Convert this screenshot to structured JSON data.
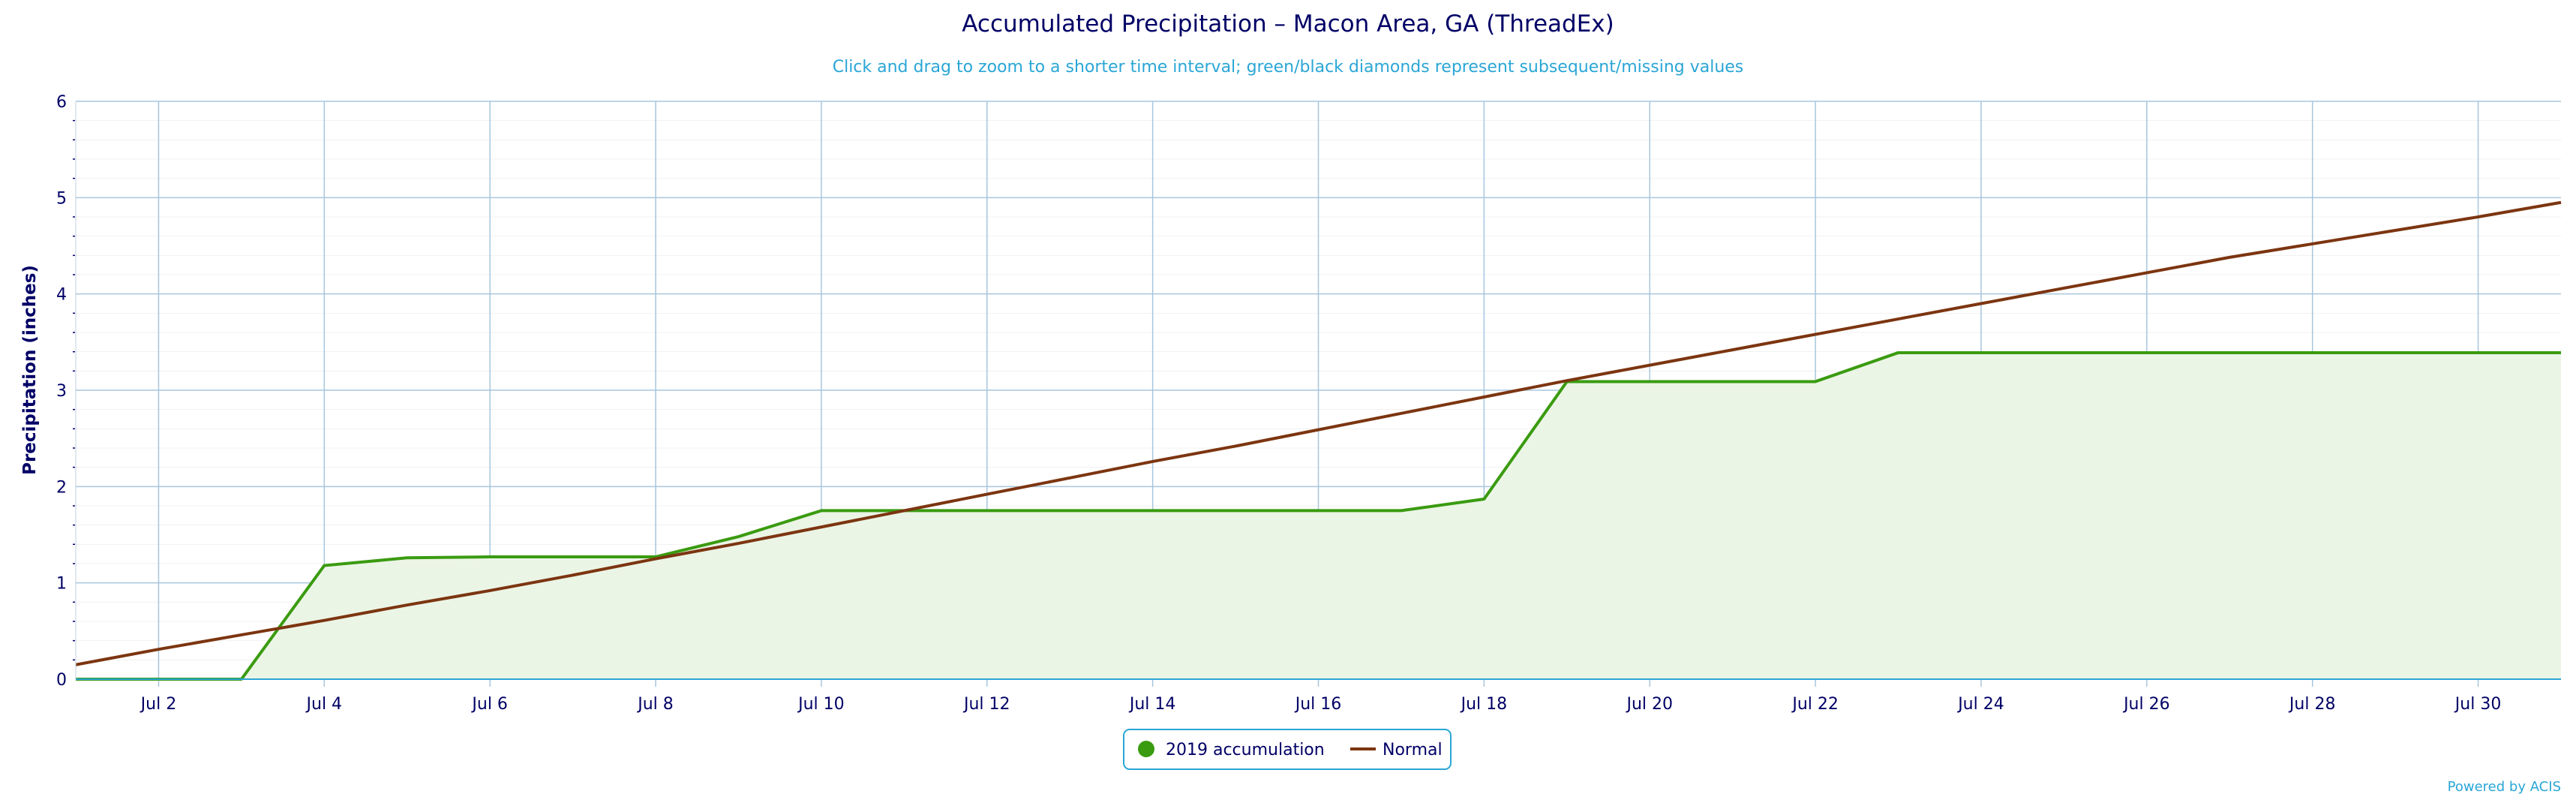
{
  "chart_data": {
    "type": "area",
    "title": "Accumulated Precipitation – Macon Area, GA (ThreadEx)",
    "subtitle": "Click and drag to zoom to a shorter time interval; green/black diamonds represent subsequent/missing values",
    "xlabel": "",
    "ylabel": "Precipitation (inches)",
    "ylim": [
      0,
      6
    ],
    "xlim": [
      "2019-07-01",
      "2019-07-31"
    ],
    "y_ticks": [
      0,
      1,
      2,
      3,
      4,
      5,
      6
    ],
    "x_ticks": [
      "Jul 2",
      "Jul 4",
      "Jul 6",
      "Jul 8",
      "Jul 10",
      "Jul 12",
      "Jul 14",
      "Jul 16",
      "Jul 18",
      "Jul 20",
      "Jul 22",
      "Jul 24",
      "Jul 26",
      "Jul 28",
      "Jul 30"
    ],
    "x": [
      "2019-07-01",
      "2019-07-02",
      "2019-07-03",
      "2019-07-04",
      "2019-07-05",
      "2019-07-06",
      "2019-07-07",
      "2019-07-08",
      "2019-07-09",
      "2019-07-10",
      "2019-07-11",
      "2019-07-12",
      "2019-07-13",
      "2019-07-14",
      "2019-07-15",
      "2019-07-16",
      "2019-07-17",
      "2019-07-18",
      "2019-07-19",
      "2019-07-20",
      "2019-07-21",
      "2019-07-22",
      "2019-07-23",
      "2019-07-24",
      "2019-07-25",
      "2019-07-26",
      "2019-07-27",
      "2019-07-28",
      "2019-07-29",
      "2019-07-30",
      "2019-07-31"
    ],
    "series": [
      {
        "name": "2019 accumulation",
        "color": "#3a9b10",
        "values": [
          0.0,
          0.0,
          0.0,
          1.18,
          1.26,
          1.27,
          1.27,
          1.27,
          1.48,
          1.75,
          1.75,
          1.75,
          1.75,
          1.75,
          1.75,
          1.75,
          1.75,
          1.87,
          3.09,
          3.09,
          3.09,
          3.09,
          3.39,
          3.39,
          3.39,
          3.39,
          3.39,
          3.39,
          3.39,
          3.39,
          3.39
        ]
      },
      {
        "name": "Normal",
        "color": "#7c3510",
        "values": [
          0.15,
          0.31,
          0.46,
          0.61,
          0.77,
          0.92,
          1.08,
          1.25,
          1.41,
          1.58,
          1.75,
          1.92,
          2.09,
          2.26,
          2.42,
          2.59,
          2.76,
          2.93,
          3.1,
          3.26,
          3.42,
          3.58,
          3.74,
          3.9,
          4.06,
          4.22,
          4.38,
          4.52,
          4.66,
          4.8,
          4.95
        ]
      }
    ],
    "grid": true,
    "legend": "bottom-center",
    "colors": {
      "title": "#000066",
      "subtitle": "#2aa6d6",
      "axis_text": "#000066",
      "grid": "#a7c6dd",
      "area_fill": "#ebf5e6",
      "legend_border": "#2aa6d6"
    }
  },
  "credits": "Powered by ACIS"
}
